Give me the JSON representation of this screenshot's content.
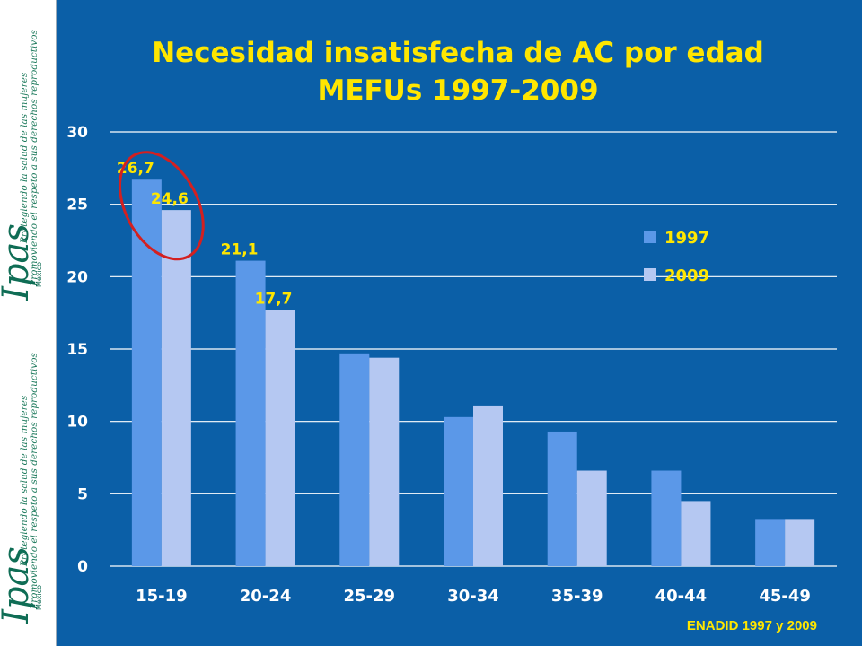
{
  "branding": {
    "logo": "Ipas",
    "country": "México",
    "tagline_1": "Protegiendo la salud de las mujeres",
    "tagline_2": "Promoviendo el respeto a sus derechos reproductivos"
  },
  "colors": {
    "background": "#0b5fa7",
    "series_1997": "#5b98e8",
    "series_2009": "#b5c8f2",
    "text_highlight": "#ffe600",
    "annotation_circle": "#d42020"
  },
  "source": "ENADID 1997 y 2009",
  "chart_data": {
    "type": "bar",
    "title": "Necesidad insatisfecha de AC por edad\nMEFUs 1997-2009",
    "xlabel": "",
    "ylabel": "",
    "categories": [
      "15-19",
      "20-24",
      "25-29",
      "30-34",
      "35-39",
      "40-44",
      "45-49"
    ],
    "series": [
      {
        "name": "1997",
        "values": [
          26.7,
          21.1,
          14.7,
          10.3,
          9.3,
          6.6,
          3.2
        ]
      },
      {
        "name": "2009",
        "values": [
          24.6,
          17.7,
          14.4,
          11.1,
          6.6,
          4.5,
          3.2
        ]
      }
    ],
    "data_labels": [
      {
        "series": 0,
        "index": 0,
        "text": "26,7"
      },
      {
        "series": 1,
        "index": 0,
        "text": "24,6"
      },
      {
        "series": 0,
        "index": 1,
        "text": "21,1"
      },
      {
        "series": 1,
        "index": 1,
        "text": "17,7"
      }
    ],
    "annotation": {
      "shape": "ellipse",
      "category": "15-19"
    },
    "ylim": [
      0,
      30
    ],
    "yticks": [
      0,
      5,
      10,
      15,
      20,
      25,
      30
    ],
    "grid": true,
    "legend": "right"
  }
}
